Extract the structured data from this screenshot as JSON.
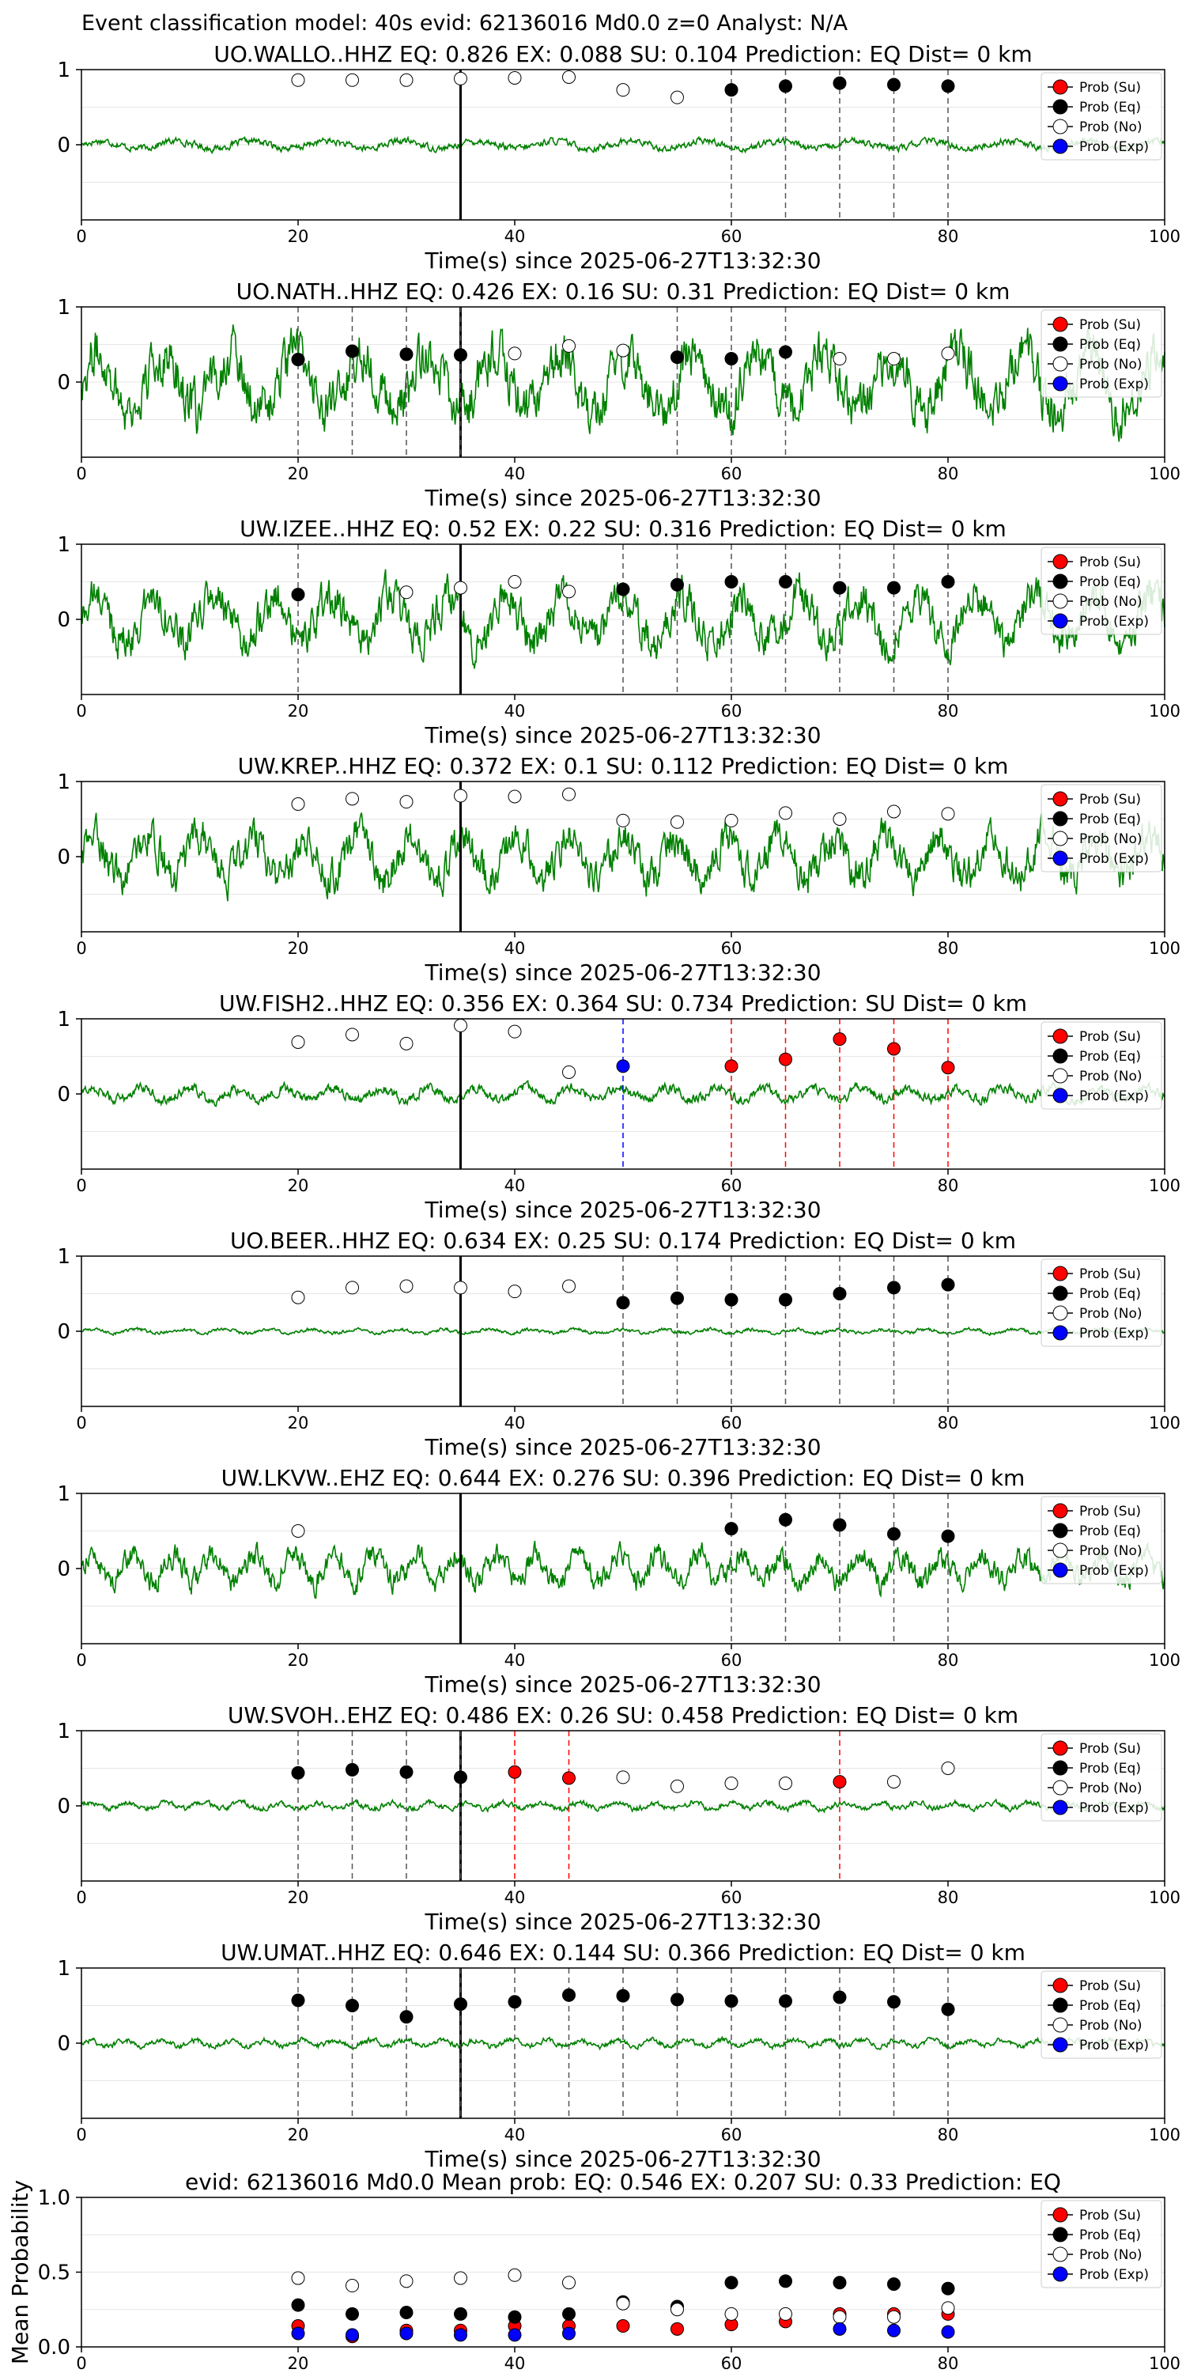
{
  "figure_title": "Event classification model: 40s evid: 62136016 Md0.0 z=0 Analyst: N/A",
  "legend_labels": [
    "Prob (Su)",
    "Prob (Eq)",
    "Prob (No)",
    "Prob (Exp)"
  ],
  "colors": {
    "waveform": "#008000",
    "su": "#ff0000",
    "eq": "#000000",
    "no": "#ffffff",
    "exp": "#0000ff",
    "arrival_line": "#000000"
  },
  "chart_data": [
    {
      "type": "line",
      "station": "UO.WALLO..HHZ",
      "title": "UO.WALLO..HHZ   EQ: 0.826  EX: 0.088  SU: 0.104   Prediction: EQ    Dist= 0 km",
      "xlabel": "Time(s) since 2025-06-27T13:32:30",
      "xlim": [
        0,
        100
      ],
      "ylim": [
        -1,
        1
      ],
      "xticks": [
        "0",
        "20",
        "40",
        "60",
        "80",
        "100"
      ],
      "yticks": [
        "1",
        "0"
      ],
      "arrival_time": 35,
      "trace_amplitude": 0.1,
      "windows": [
        {
          "t": 20,
          "p": 0.86,
          "cls": "no"
        },
        {
          "t": 25,
          "p": 0.86,
          "cls": "no"
        },
        {
          "t": 30,
          "p": 0.86,
          "cls": "no"
        },
        {
          "t": 35,
          "p": 0.88,
          "cls": "no"
        },
        {
          "t": 40,
          "p": 0.89,
          "cls": "no"
        },
        {
          "t": 45,
          "p": 0.9,
          "cls": "no"
        },
        {
          "t": 50,
          "p": 0.73,
          "cls": "no"
        },
        {
          "t": 55,
          "p": 0.63,
          "cls": "no"
        },
        {
          "t": 60,
          "p": 0.73,
          "cls": "eq"
        },
        {
          "t": 65,
          "p": 0.78,
          "cls": "eq"
        },
        {
          "t": 70,
          "p": 0.82,
          "cls": "eq"
        },
        {
          "t": 75,
          "p": 0.8,
          "cls": "eq"
        },
        {
          "t": 80,
          "p": 0.78,
          "cls": "eq"
        }
      ]
    },
    {
      "type": "line",
      "station": "UO.NATH..HHZ",
      "title": "UO.NATH..HHZ   EQ: 0.426  EX: 0.16  SU: 0.31   Prediction: EQ    Dist= 0 km",
      "xlabel": "Time(s) since 2025-06-27T13:32:30",
      "xlim": [
        0,
        100
      ],
      "ylim": [
        -1,
        1
      ],
      "xticks": [
        "0",
        "20",
        "40",
        "60",
        "80",
        "100"
      ],
      "yticks": [
        "1",
        "0"
      ],
      "arrival_time": 35,
      "trace_amplitude": 0.75,
      "windows": [
        {
          "t": 20,
          "p": 0.3,
          "cls": "eq"
        },
        {
          "t": 25,
          "p": 0.41,
          "cls": "eq"
        },
        {
          "t": 30,
          "p": 0.37,
          "cls": "eq"
        },
        {
          "t": 35,
          "p": 0.36,
          "cls": "eq"
        },
        {
          "t": 40,
          "p": 0.38,
          "cls": "no"
        },
        {
          "t": 45,
          "p": 0.48,
          "cls": "no"
        },
        {
          "t": 50,
          "p": 0.42,
          "cls": "no"
        },
        {
          "t": 55,
          "p": 0.33,
          "cls": "eq"
        },
        {
          "t": 60,
          "p": 0.31,
          "cls": "eq"
        },
        {
          "t": 65,
          "p": 0.4,
          "cls": "eq"
        },
        {
          "t": 70,
          "p": 0.31,
          "cls": "no"
        },
        {
          "t": 75,
          "p": 0.31,
          "cls": "no"
        },
        {
          "t": 80,
          "p": 0.38,
          "cls": "no"
        }
      ]
    },
    {
      "type": "line",
      "station": "UW.IZEE..HHZ",
      "title": "UW.IZEE..HHZ   EQ: 0.52  EX: 0.22  SU: 0.316   Prediction: EQ    Dist= 0 km",
      "xlabel": "Time(s) since 2025-06-27T13:32:30",
      "xlim": [
        0,
        100
      ],
      "ylim": [
        -1,
        1
      ],
      "xticks": [
        "0",
        "20",
        "40",
        "60",
        "80",
        "100"
      ],
      "yticks": [
        "1",
        "0"
      ],
      "arrival_time": 35,
      "trace_amplitude": 0.6,
      "windows": [
        {
          "t": 20,
          "p": 0.33,
          "cls": "eq"
        },
        {
          "t": 30,
          "p": 0.36,
          "cls": "no"
        },
        {
          "t": 35,
          "p": 0.42,
          "cls": "no"
        },
        {
          "t": 40,
          "p": 0.5,
          "cls": "no"
        },
        {
          "t": 45,
          "p": 0.37,
          "cls": "no"
        },
        {
          "t": 50,
          "p": 0.4,
          "cls": "eq"
        },
        {
          "t": 55,
          "p": 0.46,
          "cls": "eq"
        },
        {
          "t": 60,
          "p": 0.5,
          "cls": "eq"
        },
        {
          "t": 65,
          "p": 0.5,
          "cls": "eq"
        },
        {
          "t": 70,
          "p": 0.42,
          "cls": "eq"
        },
        {
          "t": 75,
          "p": 0.42,
          "cls": "eq"
        },
        {
          "t": 80,
          "p": 0.5,
          "cls": "eq"
        }
      ]
    },
    {
      "type": "line",
      "station": "UW.KREP..HHZ",
      "title": "UW.KREP..HHZ   EQ: 0.372  EX: 0.1  SU: 0.112   Prediction: EQ    Dist= 0 km",
      "xlabel": "Time(s) since 2025-06-27T13:32:30",
      "xlim": [
        0,
        100
      ],
      "ylim": [
        -1,
        1
      ],
      "xticks": [
        "0",
        "20",
        "40",
        "60",
        "80",
        "100"
      ],
      "yticks": [
        "1",
        "0"
      ],
      "arrival_time": 35,
      "trace_amplitude": 0.55,
      "windows": [
        {
          "t": 20,
          "p": 0.7,
          "cls": "no"
        },
        {
          "t": 25,
          "p": 0.77,
          "cls": "no"
        },
        {
          "t": 30,
          "p": 0.73,
          "cls": "no"
        },
        {
          "t": 35,
          "p": 0.81,
          "cls": "no"
        },
        {
          "t": 40,
          "p": 0.8,
          "cls": "no"
        },
        {
          "t": 45,
          "p": 0.83,
          "cls": "no"
        },
        {
          "t": 50,
          "p": 0.48,
          "cls": "no"
        },
        {
          "t": 55,
          "p": 0.46,
          "cls": "no"
        },
        {
          "t": 60,
          "p": 0.48,
          "cls": "no"
        },
        {
          "t": 65,
          "p": 0.58,
          "cls": "no"
        },
        {
          "t": 70,
          "p": 0.5,
          "cls": "no"
        },
        {
          "t": 75,
          "p": 0.6,
          "cls": "no"
        },
        {
          "t": 80,
          "p": 0.57,
          "cls": "no"
        }
      ]
    },
    {
      "type": "line",
      "station": "UW.FISH2..HHZ",
      "title": "UW.FISH2..HHZ   EQ: 0.356  EX: 0.364  SU: 0.734   Prediction: SU    Dist= 0 km",
      "xlabel": "Time(s) since 2025-06-27T13:32:30",
      "xlim": [
        0,
        100
      ],
      "ylim": [
        -1,
        1
      ],
      "xticks": [
        "0",
        "20",
        "40",
        "60",
        "80",
        "100"
      ],
      "yticks": [
        "1",
        "0"
      ],
      "arrival_time": 35,
      "trace_amplitude": 0.15,
      "windows": [
        {
          "t": 20,
          "p": 0.69,
          "cls": "no"
        },
        {
          "t": 25,
          "p": 0.79,
          "cls": "no"
        },
        {
          "t": 30,
          "p": 0.67,
          "cls": "no"
        },
        {
          "t": 35,
          "p": 0.91,
          "cls": "no"
        },
        {
          "t": 40,
          "p": 0.83,
          "cls": "no"
        },
        {
          "t": 45,
          "p": 0.29,
          "cls": "no"
        },
        {
          "t": 50,
          "p": 0.37,
          "cls": "exp"
        },
        {
          "t": 60,
          "p": 0.37,
          "cls": "su"
        },
        {
          "t": 65,
          "p": 0.46,
          "cls": "su"
        },
        {
          "t": 70,
          "p": 0.73,
          "cls": "su"
        },
        {
          "t": 75,
          "p": 0.6,
          "cls": "su"
        },
        {
          "t": 80,
          "p": 0.35,
          "cls": "su"
        }
      ]
    },
    {
      "type": "line",
      "station": "UO.BEER..HHZ",
      "title": "UO.BEER..HHZ   EQ: 0.634  EX: 0.25  SU: 0.174   Prediction: EQ    Dist= 0 km",
      "xlabel": "Time(s) since 2025-06-27T13:32:30",
      "xlim": [
        0,
        100
      ],
      "ylim": [
        -1,
        1
      ],
      "xticks": [
        "0",
        "20",
        "40",
        "60",
        "80",
        "100"
      ],
      "yticks": [
        "1",
        "0"
      ],
      "arrival_time": 35,
      "trace_amplitude": 0.05,
      "windows": [
        {
          "t": 20,
          "p": 0.45,
          "cls": "no"
        },
        {
          "t": 25,
          "p": 0.58,
          "cls": "no"
        },
        {
          "t": 30,
          "p": 0.6,
          "cls": "no"
        },
        {
          "t": 35,
          "p": 0.58,
          "cls": "no"
        },
        {
          "t": 40,
          "p": 0.53,
          "cls": "no"
        },
        {
          "t": 45,
          "p": 0.6,
          "cls": "no"
        },
        {
          "t": 50,
          "p": 0.38,
          "cls": "eq"
        },
        {
          "t": 55,
          "p": 0.44,
          "cls": "eq"
        },
        {
          "t": 60,
          "p": 0.42,
          "cls": "eq"
        },
        {
          "t": 65,
          "p": 0.42,
          "cls": "eq"
        },
        {
          "t": 70,
          "p": 0.5,
          "cls": "eq"
        },
        {
          "t": 75,
          "p": 0.58,
          "cls": "eq"
        },
        {
          "t": 80,
          "p": 0.62,
          "cls": "eq"
        }
      ]
    },
    {
      "type": "line",
      "station": "UW.LKVW..EHZ",
      "title": "UW.LKVW..EHZ   EQ: 0.644  EX: 0.276  SU: 0.396   Prediction: EQ    Dist= 0 km",
      "xlabel": "Time(s) since 2025-06-27T13:32:30",
      "xlim": [
        0,
        100
      ],
      "ylim": [
        -1,
        1
      ],
      "xticks": [
        "0",
        "20",
        "40",
        "60",
        "80",
        "100"
      ],
      "yticks": [
        "1",
        "0"
      ],
      "arrival_time": 35,
      "trace_amplitude": 0.35,
      "windows": [
        {
          "t": 20,
          "p": 0.5,
          "cls": "no"
        },
        {
          "t": 60,
          "p": 0.53,
          "cls": "eq"
        },
        {
          "t": 65,
          "p": 0.65,
          "cls": "eq"
        },
        {
          "t": 70,
          "p": 0.58,
          "cls": "eq"
        },
        {
          "t": 75,
          "p": 0.46,
          "cls": "eq"
        },
        {
          "t": 80,
          "p": 0.43,
          "cls": "eq"
        }
      ]
    },
    {
      "type": "line",
      "station": "UW.SVOH..EHZ",
      "title": "UW.SVOH..EHZ   EQ: 0.486  EX: 0.26  SU: 0.458   Prediction: EQ    Dist= 0 km",
      "xlabel": "Time(s) since 2025-06-27T13:32:30",
      "xlim": [
        0,
        100
      ],
      "ylim": [
        -1,
        1
      ],
      "xticks": [
        "0",
        "20",
        "40",
        "60",
        "80",
        "100"
      ],
      "yticks": [
        "1",
        "0"
      ],
      "arrival_time": 35,
      "trace_amplitude": 0.08,
      "windows": [
        {
          "t": 20,
          "p": 0.44,
          "cls": "eq"
        },
        {
          "t": 25,
          "p": 0.48,
          "cls": "eq"
        },
        {
          "t": 30,
          "p": 0.45,
          "cls": "eq"
        },
        {
          "t": 35,
          "p": 0.38,
          "cls": "eq"
        },
        {
          "t": 40,
          "p": 0.45,
          "cls": "su"
        },
        {
          "t": 45,
          "p": 0.37,
          "cls": "su"
        },
        {
          "t": 50,
          "p": 0.38,
          "cls": "no"
        },
        {
          "t": 55,
          "p": 0.26,
          "cls": "no"
        },
        {
          "t": 60,
          "p": 0.3,
          "cls": "no"
        },
        {
          "t": 65,
          "p": 0.3,
          "cls": "no"
        },
        {
          "t": 70,
          "p": 0.32,
          "cls": "su"
        },
        {
          "t": 75,
          "p": 0.32,
          "cls": "no"
        },
        {
          "t": 80,
          "p": 0.5,
          "cls": "no"
        }
      ]
    },
    {
      "type": "line",
      "station": "UW.UMAT..HHZ",
      "title": "UW.UMAT..HHZ   EQ: 0.646  EX: 0.144  SU: 0.366   Prediction: EQ    Dist= 0 km",
      "xlabel": "Time(s) since 2025-06-27T13:32:30",
      "xlim": [
        0,
        100
      ],
      "ylim": [
        -1,
        1
      ],
      "xticks": [
        "0",
        "20",
        "40",
        "60",
        "80",
        "100"
      ],
      "yticks": [
        "1",
        "0"
      ],
      "arrival_time": 35,
      "trace_amplitude": 0.08,
      "windows": [
        {
          "t": 20,
          "p": 0.57,
          "cls": "eq"
        },
        {
          "t": 25,
          "p": 0.5,
          "cls": "eq"
        },
        {
          "t": 30,
          "p": 0.35,
          "cls": "eq"
        },
        {
          "t": 35,
          "p": 0.52,
          "cls": "eq"
        },
        {
          "t": 40,
          "p": 0.55,
          "cls": "eq"
        },
        {
          "t": 45,
          "p": 0.64,
          "cls": "eq"
        },
        {
          "t": 50,
          "p": 0.63,
          "cls": "eq"
        },
        {
          "t": 55,
          "p": 0.58,
          "cls": "eq"
        },
        {
          "t": 60,
          "p": 0.56,
          "cls": "eq"
        },
        {
          "t": 65,
          "p": 0.56,
          "cls": "eq"
        },
        {
          "t": 70,
          "p": 0.61,
          "cls": "eq"
        },
        {
          "t": 75,
          "p": 0.55,
          "cls": "eq"
        },
        {
          "t": 80,
          "p": 0.45,
          "cls": "eq"
        }
      ]
    },
    {
      "type": "scatter",
      "title": "evid: 62136016  Md0.0   Mean prob:   EQ: 0.546  EX: 0.207  SU: 0.33   Prediction: EQ",
      "ylabel": "Mean Probability",
      "xlim": [
        0,
        100
      ],
      "ylim": [
        0,
        1
      ],
      "xticks": [
        "0",
        "20",
        "40",
        "60",
        "80",
        "100"
      ],
      "yticks": [
        "0.0",
        "0.5",
        "1.0"
      ],
      "x": [
        20,
        25,
        30,
        35,
        40,
        45,
        50,
        55,
        60,
        65,
        70,
        75,
        80
      ],
      "series": [
        {
          "name": "Prob (Su)",
          "values": [
            0.14,
            0.07,
            0.11,
            0.11,
            0.14,
            0.14,
            0.14,
            0.12,
            0.15,
            0.17,
            0.22,
            0.22,
            0.22
          ]
        },
        {
          "name": "Prob (Eq)",
          "values": [
            0.28,
            0.22,
            0.23,
            0.22,
            0.2,
            0.22,
            0.3,
            0.27,
            0.43,
            0.44,
            0.43,
            0.42,
            0.39
          ]
        },
        {
          "name": "Prob (No)",
          "values": [
            0.46,
            0.41,
            0.44,
            0.46,
            0.48,
            0.43,
            0.29,
            0.25,
            0.22,
            0.22,
            0.2,
            0.2,
            0.26
          ]
        },
        {
          "name": "Prob (Exp)",
          "values": [
            0.09,
            0.08,
            0.09,
            0.08,
            0.08,
            0.09,
            null,
            null,
            null,
            null,
            0.12,
            0.11,
            0.1
          ]
        }
      ],
      "legend": "top-right"
    }
  ]
}
